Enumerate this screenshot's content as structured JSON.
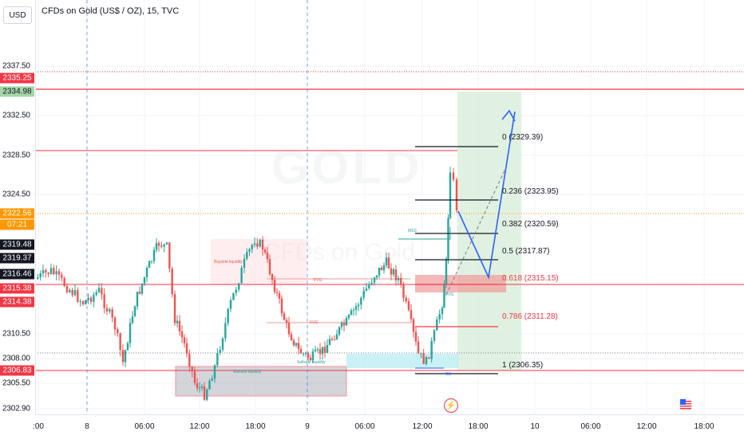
{
  "header": {
    "title": "CFDs on Gold (US$ / OZ), 15, TVC"
  },
  "watermark": {
    "symbol": "GOLD",
    "subtitle": "CFDs on Gold"
  },
  "price_axis": {
    "currency": "USD",
    "ticks": [
      "2337.50",
      "2332.50",
      "2328.50",
      "2324.50",
      "2310.50",
      "2308.00",
      "2305.50",
      "2302.90"
    ],
    "labels": {
      "l1": "2335.25",
      "l2": "2334.98",
      "l3": "2322.56",
      "l4": "07:21",
      "l5": "2319.48",
      "l6": "2319.37",
      "l7": "2316.46",
      "l8": "2315.38",
      "l9": "2314.38",
      "l10": "2306.83"
    }
  },
  "time_axis": {
    "ticks": [
      ":00",
      "8",
      "06:00",
      "12:00",
      "18:00",
      "9",
      "06:00",
      "12:00",
      "18:00",
      "10",
      "06:00",
      "12:00",
      "18:00"
    ]
  },
  "fibonacci": {
    "levels": [
      "0 (2329.39)",
      "0.236 (2323.95)",
      "0.382 (2320.59)",
      "0.5 (2317.87)",
      "0.618 (2315.15)",
      "0.786 (2311.28)",
      "1 (2306.35)"
    ]
  },
  "annotations": {
    "fvg1": "FVG",
    "fvg2": "FVG",
    "buyside": "Buyside liquidity",
    "sellside1": "Sellside liquidity",
    "sellside2": "Sellside liquidity",
    "mss": "MSS",
    "ob": "+OB",
    "fvg3": "FVG"
  },
  "icons": {
    "flash": "lightning-icon",
    "flag": "us-flag-icon"
  },
  "colors": {
    "bull": "#26a69a",
    "bear": "#ef5350",
    "level_line": "#f23645",
    "target_zone": "#c8e6c9",
    "arrow": "#2962ff"
  }
}
